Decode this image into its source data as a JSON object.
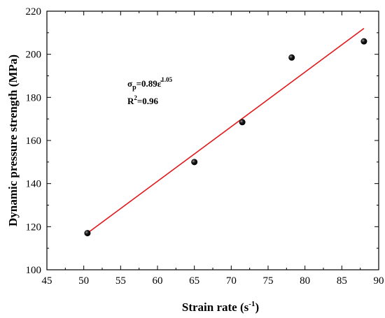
{
  "chart_data": {
    "type": "scatter",
    "title": "",
    "xlabel": "Strain rate (s",
    "xlabel_sup": "-1",
    "xlabel_close": ")",
    "ylabel": "Dynamic pressure strength (MPa)",
    "xlim": [
      45,
      90
    ],
    "ylim": [
      100,
      220
    ],
    "x_ticks": [
      45,
      50,
      55,
      60,
      65,
      70,
      75,
      80,
      85,
      90
    ],
    "y_ticks": [
      100,
      120,
      140,
      160,
      180,
      200,
      220
    ],
    "grid": false,
    "legend": "none",
    "series": [
      {
        "type": "scatter",
        "color": "#000000",
        "points": [
          {
            "x": 50.5,
            "y": 117.0
          },
          {
            "x": 65.0,
            "y": 150.0
          },
          {
            "x": 71.5,
            "y": 168.5
          },
          {
            "x": 78.2,
            "y": 198.5
          },
          {
            "x": 88.0,
            "y": 206.0
          }
        ]
      },
      {
        "type": "line",
        "color": "#e31a1c",
        "points": [
          {
            "x": 50.5,
            "y": 117.0
          },
          {
            "x": 88.0,
            "y": 212.0
          }
        ]
      }
    ],
    "annotations": {
      "fit_sigma": "σ",
      "fit_sigma_sub": "p",
      "fit_rest": "=0.89ε̇",
      "fit_exp": "1.05",
      "r2_base": "R",
      "r2_sup": "2",
      "r2_rest": "=0.96"
    }
  }
}
